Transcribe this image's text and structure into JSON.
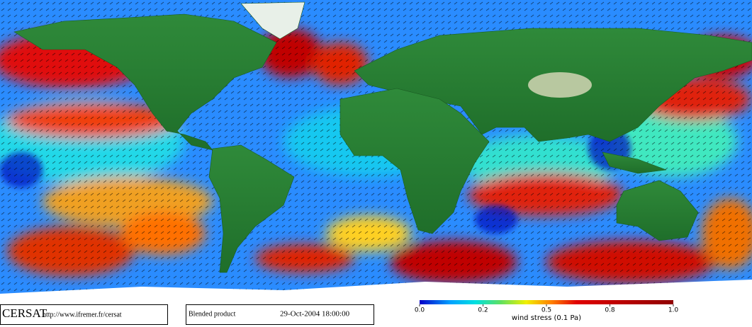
{
  "footer": {
    "logo": "CERSAT",
    "url": "http://www.ifremer.fr/cersat",
    "product": "Blended product",
    "timestamp": "29-Oct-2004 18:00:00"
  },
  "colorbar": {
    "label": "wind stress (0.1 Pa)",
    "ticks": [
      {
        "value": 0,
        "label": "0.0"
      },
      0.2,
      0.5,
      0.8,
      {
        "value": 1,
        "label": "1.0"
      }
    ]
  }
}
